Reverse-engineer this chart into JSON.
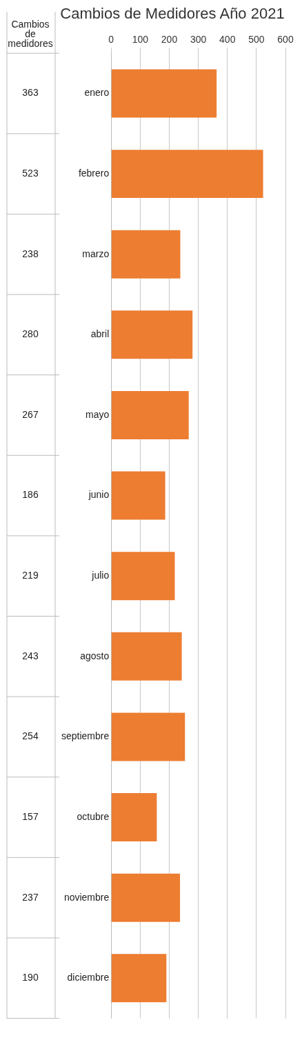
{
  "chart_data": {
    "type": "bar",
    "orientation": "horizontal",
    "title": "Cambios de Medidores Año 2021",
    "categories": [
      "enero",
      "febrero",
      "marzo",
      "abril",
      "mayo",
      "junio",
      "julio",
      "agosto",
      "septiembre",
      "octubre",
      "noviembre",
      "diciembre"
    ],
    "series": [
      {
        "name": "Cambios de medidores",
        "color": "#ed7d31",
        "values": [
          363,
          523,
          238,
          280,
          267,
          186,
          219,
          243,
          254,
          157,
          237,
          190
        ]
      }
    ],
    "xlim": [
      0,
      600
    ],
    "xticks": [
      0,
      100,
      200,
      300,
      400,
      500,
      600
    ],
    "grid": "x",
    "data_labels": true,
    "legend": false
  }
}
